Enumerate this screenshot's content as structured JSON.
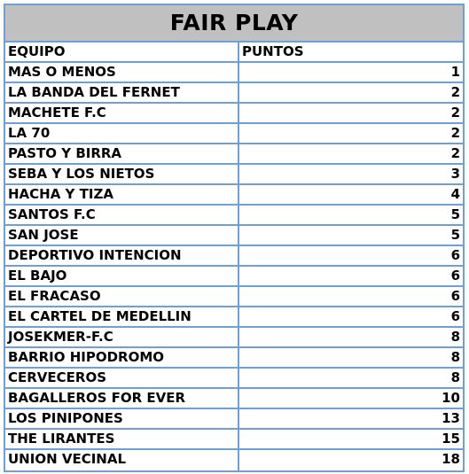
{
  "title": "FAIR PLAY",
  "headers": {
    "team": "EQUIPO",
    "points": "PUNTOS"
  },
  "rows": [
    {
      "team": "MAS O MENOS",
      "points": "1"
    },
    {
      "team": "LA BANDA DEL FERNET",
      "points": "2"
    },
    {
      "team": "MACHETE F.C",
      "points": "2"
    },
    {
      "team": "LA 70",
      "points": "2"
    },
    {
      "team": "PASTO Y BIRRA",
      "points": "2"
    },
    {
      "team": "SEBA Y LOS NIETOS",
      "points": "3"
    },
    {
      "team": "HACHA Y TIZA",
      "points": "4"
    },
    {
      "team": "SANTOS F.C",
      "points": "5"
    },
    {
      "team": "SAN JOSE",
      "points": "5"
    },
    {
      "team": "DEPORTIVO INTENCION",
      "points": "6"
    },
    {
      "team": "EL BAJO",
      "points": "6"
    },
    {
      "team": "EL FRACASO",
      "points": "6"
    },
    {
      "team": "EL CARTEL DE MEDELLIN",
      "points": "6"
    },
    {
      "team": "JOSEKMER-F.C",
      "points": "8"
    },
    {
      "team": "BARRIO HIPODROMO",
      "points": "8"
    },
    {
      "team": "CERVECEROS",
      "points": "8"
    },
    {
      "team": "BAGALLEROS FOR EVER",
      "points": "10"
    },
    {
      "team": "LOS PINIPONES",
      "points": "13"
    },
    {
      "team": "THE LIRANTES",
      "points": "15"
    },
    {
      "team": "UNION VECINAL",
      "points": "18"
    }
  ]
}
